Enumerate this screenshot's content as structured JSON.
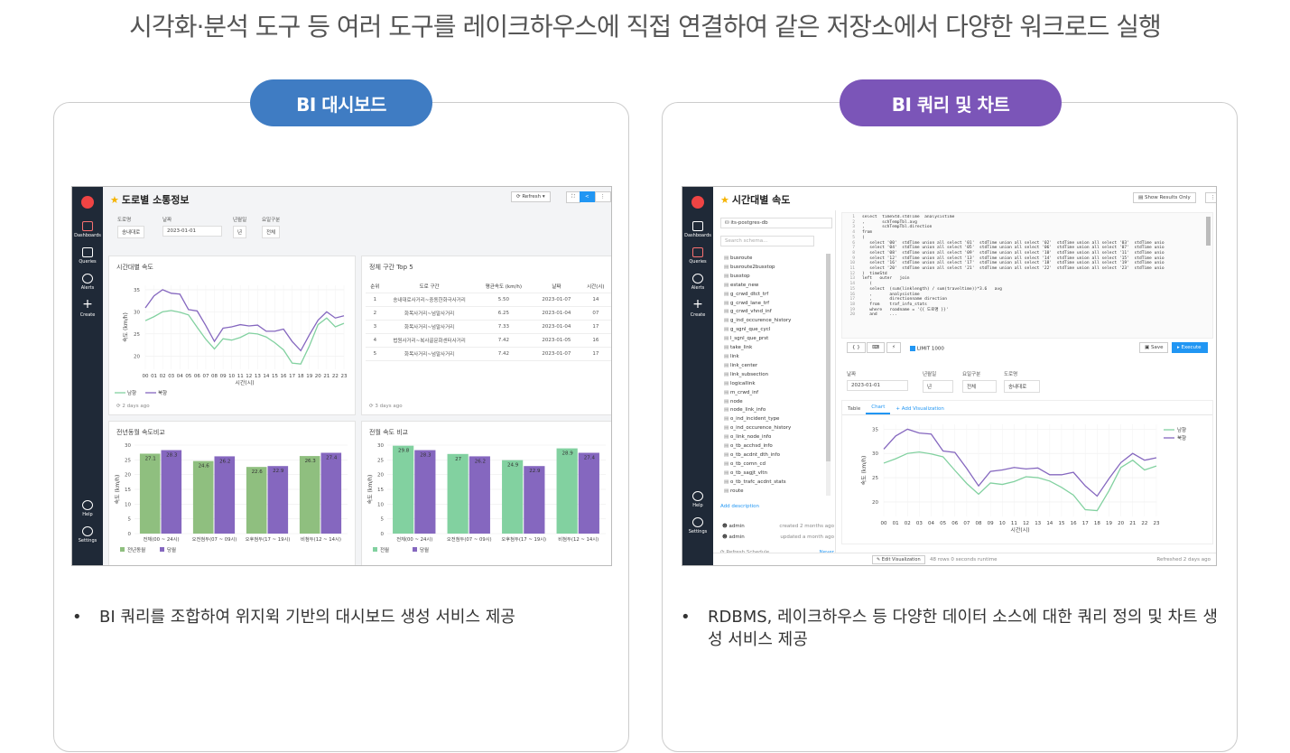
{
  "heading": "시각화·분석 도구 등 여러 도구를 레이크하우스에 직접 연결하여 같은 저장소에서 다양한 워크로드 실행",
  "colors": {
    "dash_pill": "#3f7cc3",
    "query_pill": "#7b55b8",
    "green": "#82d1a0",
    "purple": "#8567bf",
    "olive": "#8fbf7f"
  },
  "left_panel": {
    "pill_label": "BI 대시보드",
    "bullet": "BI 쿼리를 조합하여 위지윅 기반의  대시보드 생성 서비스 제공",
    "app": {
      "nav": [
        {
          "icon": "monitor-icon",
          "label": "Dashboards"
        },
        {
          "icon": "terminal-icon",
          "label": "Queries"
        },
        {
          "icon": "bell-icon",
          "label": "Alerts"
        },
        {
          "icon": "plus-icon",
          "label": "Create"
        }
      ],
      "nav_bottom": [
        {
          "icon": "help-icon",
          "label": "Help"
        },
        {
          "icon": "gear-icon",
          "label": "Settings"
        }
      ],
      "title": "도로별 소통정보",
      "refresh_label": "Refresh",
      "filters": [
        {
          "label": "도로명",
          "value": "송내대로"
        },
        {
          "label": "날짜",
          "value": "2023-01-01"
        },
        {
          "label": "년월일",
          "value": "년"
        },
        {
          "label": "요일구분",
          "value": "전체"
        }
      ],
      "line_card": {
        "title": "시간대별 속도",
        "footer": "2 days ago"
      },
      "table_card": {
        "title": "정체 구간 Top 5",
        "headers": [
          "순위",
          "도로 구간",
          "평균속도 (km/h)",
          "날짜",
          "시간(시)"
        ],
        "rows": [
          [
            "1",
            "송내대로사거리~중동한화극사거리",
            "5.50",
            "2023-01-07",
            "14"
          ],
          [
            "2",
            "화목사거리~넘말사거리",
            "6.25",
            "2023-01-04",
            "07"
          ],
          [
            "3",
            "화목사거리~넘말사거리",
            "7.33",
            "2023-01-04",
            "17"
          ],
          [
            "4",
            "법원사거리~복사골문화센터사거리",
            "7.42",
            "2023-01-05",
            "16"
          ],
          [
            "5",
            "화목사거리~넘말사거리",
            "7.42",
            "2023-01-07",
            "17"
          ]
        ],
        "footer": "3 days ago"
      },
      "bar_card1": {
        "title": "전년동월 속도비교"
      },
      "bar_card2": {
        "title": "전월 속도 비교"
      }
    }
  },
  "right_panel": {
    "pill_label": "BI 쿼리 및 차트",
    "bullet": "RDBMS, 레이크하우스 등 다양한 데이터 소스에 대한 쿼리 정의 및 차트 생성 서비스 제공",
    "app": {
      "title": "시간대별 속도",
      "show_results_label": "Show Results Only",
      "datasource": "its-postgres-db",
      "schema_search_placeholder": "Search schema...",
      "schema": [
        "busroute",
        "busroute2busstop",
        "busstop",
        "estate_new",
        "g_crwd_dtct_trf",
        "g_crwd_lane_trf",
        "g_crwd_vhnd_inf",
        "g_ind_occurence_history",
        "g_sgnl_que_cycl",
        "l_sgnl_que_prst",
        "take_link",
        "link",
        "link_center",
        "link_subsection",
        "logicallink",
        "m_crwd_inf",
        "node",
        "node_link_info",
        "o_ind_incident_type",
        "o_ind_occurence_history",
        "o_link_node_info",
        "o_tb_acchsd_info",
        "o_tb_acdnt_dth_info",
        "o_tb_comn_cd",
        "o_tb_sagjt_vltn",
        "o_tb_trafc_acdnt_stats",
        "route"
      ],
      "add_description": "Add description",
      "admin_rows": [
        {
          "name": "admin",
          "info": "created 2 months ago"
        },
        {
          "name": "admin",
          "info": "updated a month ago"
        }
      ],
      "refresh_schedule": "Refresh Schedule",
      "never": "Never",
      "code_lines": [
        "select  timeStd.stdTime  analysistime",
        ",       schTempTbl.avg",
        ",       schTempTbl.direction",
        "from",
        "(",
        "   select '00'  stdTime union all select '01'  stdTime union all select '02'  stdTime union all select '03'  stdTime unio",
        "   select '04'  stdTime union all select '05'  stdTime union all select '06'  stdTime union all select '07'  stdTime unio",
        "   select '08'  stdTime union all select '09'  stdTime union all select '10'  stdTime union all select '11'  stdTime unio",
        "   select '12'  stdTime union all select '13'  stdTime union all select '14'  stdTime union all select '15'  stdTime unio",
        "   select '16'  stdTime union all select '17'  stdTime union all select '18'  stdTime union all select '19'  stdTime unio",
        "   select '20'  stdTime union all select '21'  stdTime union all select '22'  stdTime union all select '23'  stdTime unio",
        ")  timeStd",
        "left   outer   join",
        "   (",
        "   select  (sum(linklength) / sum(traveltime))*3.6   avg",
        "   ,       analysistime",
        "   ,       directionname direction",
        "   from    traf_info_stats",
        "   where   roadname = '{{ 도로명 }}'",
        "   and     ..."
      ],
      "limit_label": "LIMIT 1000",
      "save_label": "Save",
      "execute_label": "Execute",
      "filters": [
        {
          "label": "날짜",
          "value": "2023-01-01"
        },
        {
          "label": "년월일",
          "value": "년"
        },
        {
          "label": "요일구분",
          "value": "전체"
        },
        {
          "label": "도로명",
          "value": "송내대로"
        }
      ],
      "tabs": [
        "Table",
        "Chart",
        "+ Add Visualization"
      ],
      "edit_label": "Edit Visualization",
      "rows_info": "48 rows  0 seconds runtime",
      "refreshed": "Refreshed 2 days ago"
    }
  },
  "chart_data": [
    {
      "type": "line",
      "title": "",
      "x": [
        "00",
        "01",
        "02",
        "03",
        "04",
        "05",
        "06",
        "07",
        "08",
        "09",
        "10",
        "11",
        "12",
        "13",
        "14",
        "15",
        "16",
        "17",
        "18",
        "19",
        "20",
        "21",
        "22",
        "23"
      ],
      "xlabel": "시간(시)",
      "ylabel": "속도 (km/h)",
      "ylim": [
        17,
        36
      ],
      "series": [
        {
          "name": "남향",
          "values": [
            28,
            28.9,
            30,
            30.3,
            29.9,
            29.3,
            26.5,
            23.8,
            21.6,
            23.9,
            23.6,
            24.2,
            25.2,
            25,
            24.3,
            23,
            21.4,
            18.4,
            18.2,
            22.3,
            27.1,
            28.6,
            26.6,
            27.4
          ]
        },
        {
          "name": "북향",
          "values": [
            30.9,
            33.6,
            35,
            34.2,
            34,
            30.5,
            30.2,
            26.9,
            23.3,
            26.3,
            26.6,
            27.1,
            26.8,
            27,
            25.6,
            25.6,
            26.1,
            23.3,
            21.2,
            24.8,
            28.1,
            30,
            28.6,
            29.1
          ]
        }
      ]
    },
    {
      "type": "bar",
      "title": "전년동월 속도비교",
      "categories": [
        "전체(00 ~ 24시)",
        "오전첨두(07 ~ 09시)",
        "오후첨두(17 ~ 19시)",
        "비첨두(12 ~ 14시)"
      ],
      "ylabel": "속도 (km/h)",
      "ylim": [
        0,
        30
      ],
      "series": [
        {
          "name": "전년동월",
          "values": [
            27.1,
            24.6,
            22.6,
            26.3
          ]
        },
        {
          "name": "당월",
          "values": [
            28.3,
            26.2,
            22.9,
            27.4
          ]
        }
      ]
    },
    {
      "type": "bar",
      "title": "전월 속도 비교",
      "categories": [
        "전체(00 ~ 24시)",
        "오전첨두(07 ~ 09시)",
        "오후첨두(17 ~ 19시)",
        "비첨두(12 ~ 14시)"
      ],
      "ylabel": "속도 (km/h)",
      "ylim": [
        0,
        30
      ],
      "series": [
        {
          "name": "전월",
          "values": [
            29.8,
            27,
            24.9,
            28.9
          ]
        },
        {
          "name": "당월",
          "values": [
            28.3,
            26.2,
            22.9,
            27.4
          ]
        }
      ]
    }
  ]
}
